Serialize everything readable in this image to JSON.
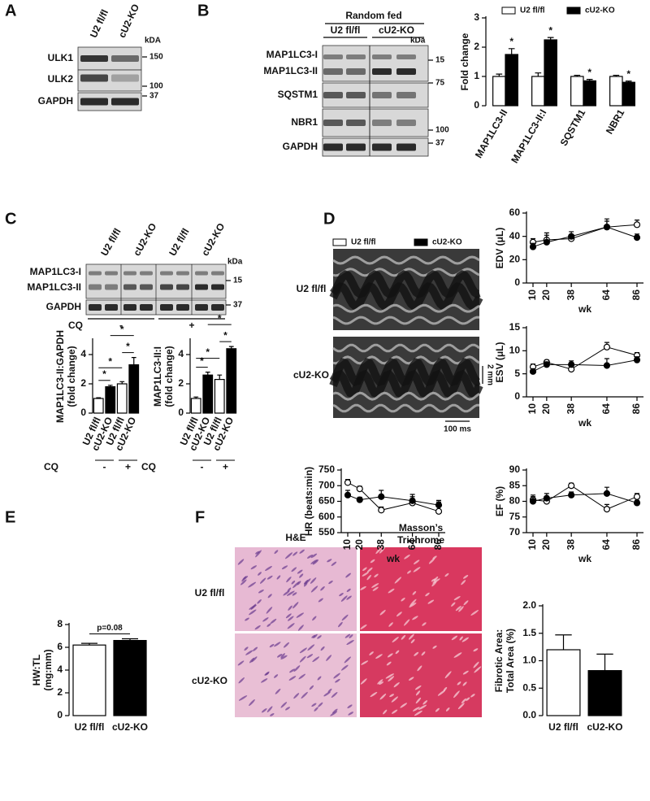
{
  "figure": {
    "A": {
      "label": "A",
      "lanes": [
        "U2 fl/fl",
        "cU2-KO"
      ],
      "kda": "kDA",
      "rows": [
        "ULK1",
        "ULK2",
        "GAPDH"
      ],
      "markers": [
        "150",
        "100",
        "37"
      ]
    },
    "B": {
      "label": "B",
      "condition": "Random fed",
      "lanes": [
        "U2 fl/fl",
        "cU2-KO"
      ],
      "kda": "kDa",
      "rows": [
        "MAP1LC3-I",
        "MAP1LC3-II",
        "SQSTM1",
        "NBR1",
        "GAPDH"
      ],
      "markers": [
        "15",
        "75",
        "100",
        "37"
      ]
    },
    "C": {
      "label": "C",
      "lanes": [
        "U2 fl/fl",
        "cU2-KO",
        "U2 fl/fl",
        "cU2-KO"
      ],
      "kda": "kDa",
      "rows": [
        "MAP1LC3-I",
        "MAP1LC3-II",
        "GAPDH"
      ],
      "markers": [
        "15",
        "37"
      ],
      "cq": "CQ",
      "cq_levels": [
        "-",
        "+"
      ]
    },
    "D": {
      "label": "D",
      "rows": [
        "U2 fl/fl",
        "cU2-KO"
      ],
      "scale_y": "2 mm",
      "scale_x": "100 ms"
    },
    "E": {
      "label": "E"
    },
    "F": {
      "label": "F",
      "stain_1": "H&E",
      "stain_2": [
        "Masson’s",
        "Trichrome"
      ],
      "rows": [
        "U2 fl/fl",
        "cU2-KO"
      ]
    }
  },
  "chart_data": [
    {
      "type": "bar",
      "ylabel": "Fold change",
      "categories": [
        "MAP1LC3-II",
        "MAP1LC3-II:I",
        "SQSTM1",
        "NBR1"
      ],
      "series": [
        {
          "name": "U2 fl/fl",
          "color": "#ffffff",
          "values": [
            1,
            1,
            1,
            1
          ],
          "errors": [
            0.08,
            0.12,
            0.04,
            0.04
          ]
        },
        {
          "name": "cU2-KO",
          "color": "#000000",
          "values": [
            1.75,
            2.25,
            0.85,
            0.8
          ],
          "errors": [
            0.2,
            0.08,
            0.05,
            0.04
          ]
        }
      ],
      "annotations": [
        "*",
        "*",
        "*",
        "*"
      ],
      "ylim": [
        0,
        3
      ],
      "yticks": [
        0,
        1,
        2,
        3
      ],
      "legend": true
    },
    {
      "type": "bar",
      "ylabel": [
        "MAP1LC3-II:GAPDH",
        "(fold change)"
      ],
      "categories": [
        "U2 fl/fl",
        "cU2-KO",
        "U2 fl/fl",
        "cU2-KO"
      ],
      "values": [
        1,
        1.8,
        2,
        3.3
      ],
      "errors": [
        0.05,
        0.1,
        0.15,
        0.5
      ],
      "colors": [
        "#ffffff",
        "#000000",
        "#ffffff",
        "#000000"
      ],
      "annotations": [
        "*",
        "*",
        "*",
        "*"
      ],
      "group_title": "CQ",
      "groups": [
        "-",
        "+"
      ],
      "ylim": [
        0,
        5
      ],
      "yticks": [
        0,
        2,
        4
      ]
    },
    {
      "type": "bar",
      "ylabel": [
        "MAP1LC3-II:I",
        "(fold change)"
      ],
      "categories": [
        "U2 fl/fl",
        "cU2-KO",
        "U2 fl/fl",
        "cU2-KO"
      ],
      "values": [
        1,
        2.6,
        2.3,
        4.4
      ],
      "errors": [
        0.1,
        0.2,
        0.3,
        0.15
      ],
      "colors": [
        "#ffffff",
        "#000000",
        "#ffffff",
        "#000000"
      ],
      "annotations": [
        "*",
        "*",
        "*",
        "*"
      ],
      "group_title": "CQ",
      "groups": [
        "-",
        "+"
      ],
      "ylim": [
        0,
        5
      ],
      "yticks": [
        0,
        2,
        4
      ]
    },
    {
      "type": "line",
      "ylabel": "EDV (μL)",
      "xlabel": "wk",
      "x": [
        10,
        20,
        38,
        64,
        86
      ],
      "xticks": [
        10,
        20,
        38,
        64,
        86
      ],
      "series": [
        {
          "name": "U2 fl/fl",
          "color": "#ffffff",
          "values": [
            35,
            37,
            38,
            48,
            50
          ],
          "errors": [
            3,
            4,
            3,
            5,
            4
          ]
        },
        {
          "name": "cU2-KO",
          "color": "#000000",
          "values": [
            31,
            35,
            40,
            48,
            39
          ],
          "errors": [
            3,
            8,
            4,
            7,
            3
          ]
        }
      ],
      "ylim": [
        0,
        60
      ],
      "yticks": [
        0,
        20,
        40,
        60
      ],
      "legend": true
    },
    {
      "type": "line",
      "ylabel": "ESV (μL)",
      "xlabel": "wk",
      "x": [
        10,
        20,
        38,
        64,
        86
      ],
      "xticks": [
        10,
        20,
        38,
        64,
        86
      ],
      "series": [
        {
          "color": "#ffffff",
          "values": [
            6.5,
            7.5,
            6,
            10.8,
            9
          ],
          "errors": [
            0.6,
            0.5,
            1,
            1,
            0.6
          ]
        },
        {
          "color": "#000000",
          "values": [
            5.5,
            7,
            7,
            6.8,
            8
          ],
          "errors": [
            0.6,
            0.6,
            0.8,
            1.5,
            0.7
          ]
        }
      ],
      "ylim": [
        0,
        15
      ],
      "yticks": [
        0,
        5,
        10,
        15
      ]
    },
    {
      "type": "line",
      "ylabel": "HR (beats:min)",
      "xlabel": "wk",
      "x": [
        10,
        20,
        38,
        64,
        86
      ],
      "xticks": [
        10,
        20,
        38,
        64,
        86
      ],
      "series": [
        {
          "color": "#ffffff",
          "values": [
            710,
            690,
            622,
            645,
            618
          ],
          "errors": [
            10,
            8,
            10,
            20,
            30
          ]
        },
        {
          "color": "#000000",
          "values": [
            670,
            655,
            665,
            652,
            638
          ],
          "errors": [
            15,
            8,
            20,
            20,
            15
          ]
        }
      ],
      "ylim": [
        550,
        750
      ],
      "yticks": [
        550,
        600,
        650,
        700,
        750
      ]
    },
    {
      "type": "line",
      "ylabel": "EF (%)",
      "xlabel": "wk",
      "x": [
        10,
        20,
        38,
        64,
        86
      ],
      "xticks": [
        10,
        20,
        38,
        64,
        86
      ],
      "series": [
        {
          "color": "#ffffff",
          "values": [
            80.5,
            80,
            85,
            77.5,
            81.5
          ],
          "errors": [
            1.5,
            1.5,
            0.8,
            1.5,
            1
          ]
        },
        {
          "color": "#000000",
          "values": [
            80,
            81,
            82,
            82.5,
            79.5
          ],
          "errors": [
            1.5,
            1.5,
            1,
            2,
            0.8
          ]
        }
      ],
      "ylim": [
        70,
        90
      ],
      "yticks": [
        70,
        75,
        80,
        85,
        90
      ]
    },
    {
      "type": "bar",
      "ylabel": [
        "HW:TL",
        "(mg:mm)"
      ],
      "categories": [
        "U2 fl/fl",
        "cU2-KO"
      ],
      "values": [
        6.2,
        6.6
      ],
      "errors": [
        0.15,
        0.15
      ],
      "colors": [
        "#ffffff",
        "#000000"
      ],
      "annotations": [
        "p=0.08"
      ],
      "ylim": [
        0,
        8
      ],
      "yticks": [
        0,
        2,
        4,
        6,
        8
      ]
    },
    {
      "type": "bar",
      "ylabel": [
        "Fibrotic Area:",
        "Total Area (%)"
      ],
      "categories": [
        "U2 fl/fl",
        "cU2-KO"
      ],
      "values": [
        1.2,
        0.82
      ],
      "errors": [
        0.27,
        0.3
      ],
      "colors": [
        "#ffffff",
        "#000000"
      ],
      "ylim": [
        0,
        2
      ],
      "yticks": [
        {
          "value": 0,
          "label": "0.0"
        },
        {
          "value": 0.5,
          "label": "0.5"
        },
        {
          "value": 1,
          "label": "1.0"
        },
        {
          "value": 1.5,
          "label": "1.5"
        },
        {
          "value": 2,
          "label": "2.0"
        }
      ]
    }
  ]
}
